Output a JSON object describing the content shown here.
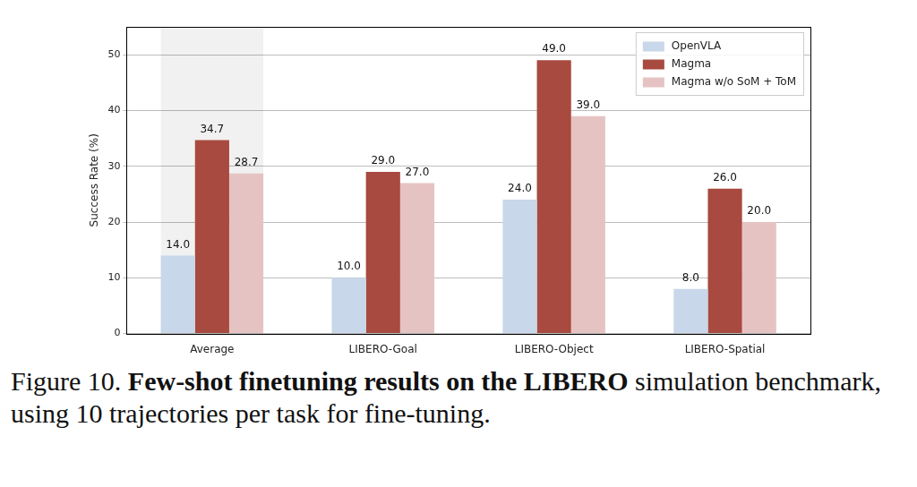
{
  "chart_data": {
    "type": "bar",
    "y_label": "Success Rate (%)",
    "categories": [
      "Average",
      "LIBERO-Goal",
      "LIBERO-Object",
      "LIBERO-Spatial"
    ],
    "series": [
      {
        "name": "OpenVLA",
        "color": "#c9d7ea",
        "values": [
          14.0,
          10.0,
          24.0,
          8.0
        ],
        "value_labels": [
          "14.0",
          "10.0",
          "24.0",
          "8.0"
        ]
      },
      {
        "name": "Magma",
        "color": "#a84a3f",
        "values": [
          34.7,
          29.0,
          49.0,
          26.0
        ],
        "value_labels": [
          "34.7",
          "29.0",
          "49.0",
          "26.0"
        ]
      },
      {
        "name": "Magma w/o SoM + ToM",
        "color": "#e6c3c3",
        "values": [
          28.7,
          27.0,
          39.0,
          20.0
        ],
        "value_labels": [
          "28.7",
          "27.0",
          "39.0",
          "20.0"
        ]
      }
    ],
    "ylim": [
      0,
      55
    ],
    "yticks": [
      0,
      10,
      20,
      30,
      40,
      50
    ],
    "grid": true,
    "legend": "upper right",
    "data_labels": true,
    "caption": {
      "label": "Figure 10.",
      "title": "Few-shot finetuning results on the LIBERO",
      "text": "simulation benchmark, using 10 trajectories per task for fine-tuning."
    }
  }
}
